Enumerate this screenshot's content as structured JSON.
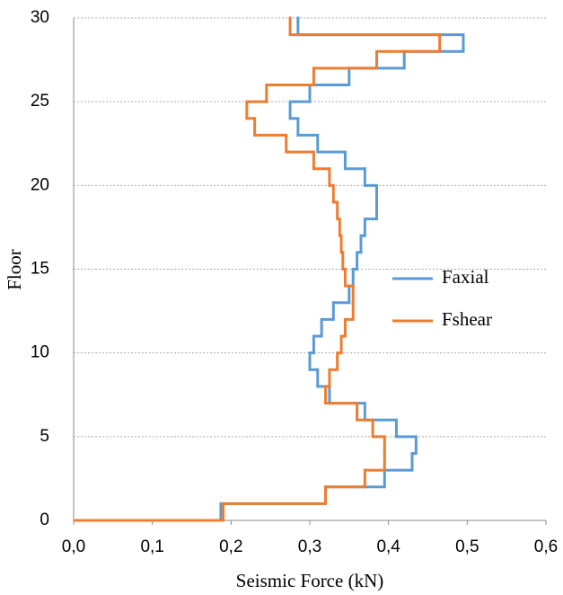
{
  "chart_data": {
    "type": "step",
    "x_label": "Seismic Force (kN)",
    "y_label": "Floor",
    "y": [
      1,
      2,
      3,
      4,
      5,
      6,
      7,
      8,
      9,
      10,
      11,
      12,
      13,
      14,
      15,
      16,
      17,
      18,
      19,
      20,
      21,
      22,
      23,
      24,
      25,
      26,
      27,
      28,
      29,
      30
    ],
    "series": [
      {
        "name": "Faxial",
        "color": "#5b9bd5",
        "values": [
          0.187,
          0.32,
          0.395,
          0.43,
          0.435,
          0.41,
          0.37,
          0.325,
          0.31,
          0.3,
          0.305,
          0.315,
          0.33,
          0.35,
          0.355,
          0.36,
          0.365,
          0.37,
          0.385,
          0.385,
          0.37,
          0.345,
          0.31,
          0.285,
          0.275,
          0.3,
          0.35,
          0.42,
          0.495,
          0.285
        ]
      },
      {
        "name": "Fshear",
        "color": "#ed7d31",
        "values": [
          0.19,
          0.32,
          0.37,
          0.395,
          0.395,
          0.38,
          0.36,
          0.32,
          0.325,
          0.335,
          0.34,
          0.345,
          0.355,
          0.355,
          0.345,
          0.342,
          0.34,
          0.338,
          0.335,
          0.33,
          0.325,
          0.305,
          0.27,
          0.23,
          0.22,
          0.245,
          0.305,
          0.385,
          0.465,
          0.275
        ]
      }
    ],
    "xlim": [
      0,
      0.6
    ],
    "xticks": [
      {
        "value": 0,
        "label": "0,0"
      },
      {
        "value": 0.1,
        "label": "0,1"
      },
      {
        "value": 0.2,
        "label": "0,2"
      },
      {
        "value": 0.3,
        "label": "0,3"
      },
      {
        "value": 0.4,
        "label": "0,4"
      },
      {
        "value": 0.5,
        "label": "0,5"
      },
      {
        "value": 0.6,
        "label": "0,6"
      }
    ],
    "ylim": [
      0,
      30
    ],
    "yticks": [
      0,
      5,
      10,
      15,
      20,
      25,
      30
    ],
    "grid": true,
    "legend": "right"
  }
}
